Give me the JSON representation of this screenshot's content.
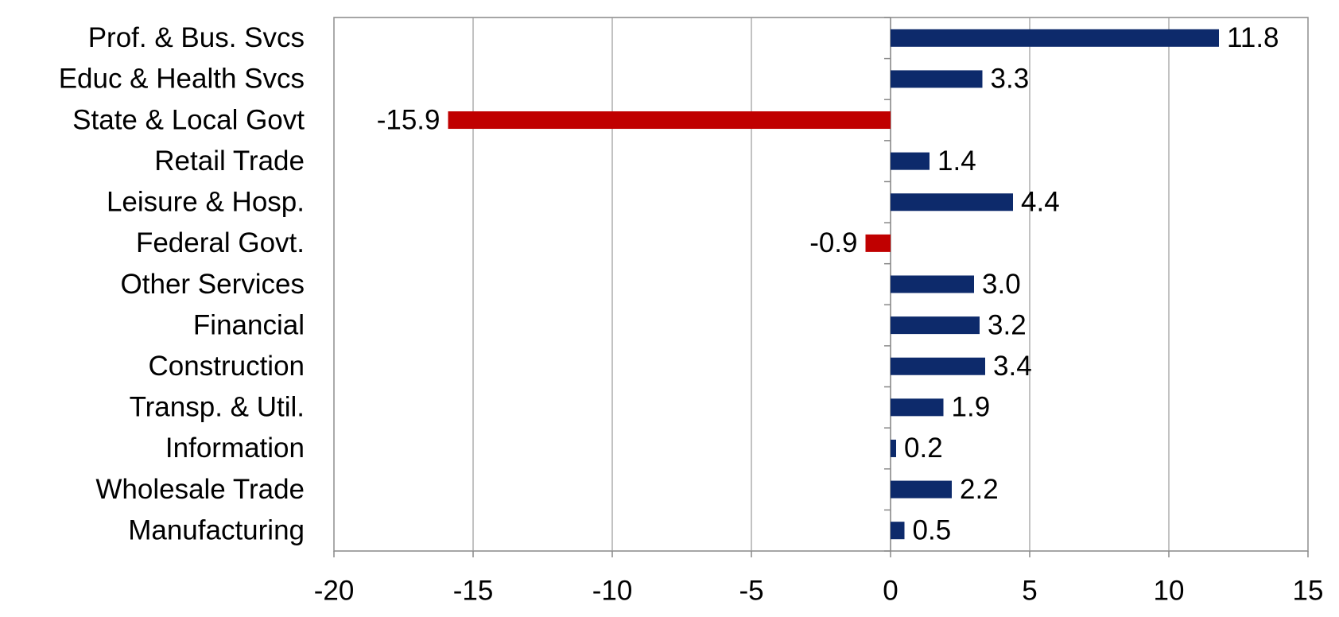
{
  "chart_data": {
    "type": "barh",
    "categories": [
      "Prof. & Bus. Svcs",
      "Educ & Health Svcs",
      "State & Local Govt",
      "Retail Trade",
      "Leisure & Hosp.",
      "Federal Govt.",
      "Other Services",
      "Financial",
      "Construction",
      "Transp. & Util.",
      "Information",
      "Wholesale Trade",
      "Manufacturing"
    ],
    "values": [
      11.8,
      3.3,
      -15.9,
      1.4,
      4.4,
      -0.9,
      3.0,
      3.2,
      3.4,
      1.9,
      0.2,
      2.2,
      0.5
    ],
    "value_labels": [
      "11.8",
      "3.3",
      "-15.9",
      "1.4",
      "4.4",
      "-0.9",
      "3.0",
      "3.2",
      "3.4",
      "1.9",
      "0.2",
      "2.2",
      "0.5"
    ],
    "color": "#0d2a6b",
    "negative_color": "#c00000",
    "xlim": [
      -20,
      15
    ],
    "xticks": [
      -20,
      -15,
      -10,
      -5,
      0,
      5,
      10,
      15
    ],
    "grid": true
  }
}
